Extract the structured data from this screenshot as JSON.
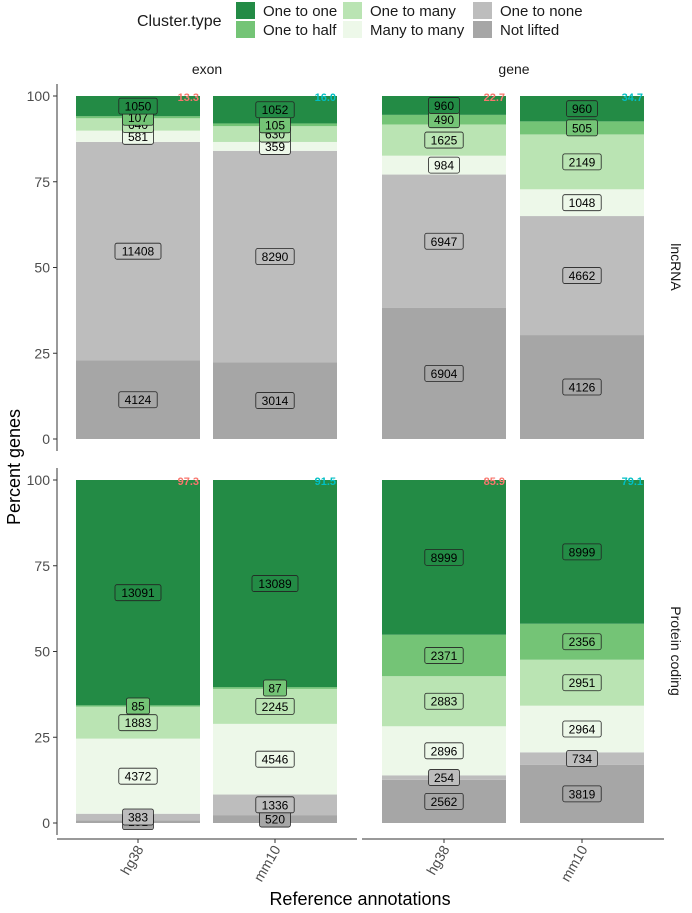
{
  "legend": {
    "title": "Cluster.type",
    "items": [
      {
        "name": "One to one",
        "color": "#238b45"
      },
      {
        "name": "One to half",
        "color": "#74c476"
      },
      {
        "name": "One to many",
        "color": "#bae4b3"
      },
      {
        "name": "Many to many",
        "color": "#edf8e9"
      },
      {
        "name": "One to none",
        "color": "#bdbdbd"
      },
      {
        "name": "Not lifted",
        "color": "#a6a6a6"
      }
    ]
  },
  "chart_data": {
    "type": "bar",
    "stacked": true,
    "ylabel": "Percent genes",
    "xlabel": "Reference annotations",
    "ylim": [
      0,
      100
    ],
    "yticks": [
      0,
      25,
      50,
      75,
      100
    ],
    "categories": [
      "hg38",
      "mm10"
    ],
    "col_facets": [
      "exon",
      "gene"
    ],
    "row_facets": [
      "lncRNA",
      "Protein coding"
    ],
    "category_colors": {
      "hg38": "#f8766d",
      "mm10": "#00bfc4"
    },
    "panels": [
      {
        "col": "exon",
        "row": "lncRNA",
        "bars": [
          {
            "category": "hg38",
            "total": "13.3",
            "segments": [
              {
                "type": "Not lifted",
                "count": 4124,
                "percent": 22.9
              },
              {
                "type": "One to none",
                "count": 11408,
                "percent": 63.7
              },
              {
                "type": "Many to many",
                "count": 581,
                "percent": 3.3
              },
              {
                "type": "One to many",
                "count": 640,
                "percent": 3.6
              },
              {
                "type": "One to half",
                "count": 107,
                "percent": 0.6
              },
              {
                "type": "One to one",
                "count": 1050,
                "percent": 5.9
              }
            ]
          },
          {
            "category": "mm10",
            "total": "16.0",
            "segments": [
              {
                "type": "Not lifted",
                "count": 3014,
                "percent": 22.4
              },
              {
                "type": "One to none",
                "count": 8290,
                "percent": 61.6
              },
              {
                "type": "Many to many",
                "count": 359,
                "percent": 2.6
              },
              {
                "type": "One to many",
                "count": 630,
                "percent": 4.6
              },
              {
                "type": "One to half",
                "count": 105,
                "percent": 0.8
              },
              {
                "type": "One to one",
                "count": 1052,
                "percent": 8.0
              }
            ]
          }
        ]
      },
      {
        "col": "gene",
        "row": "lncRNA",
        "bars": [
          {
            "category": "hg38",
            "total": "22.7",
            "segments": [
              {
                "type": "Not lifted",
                "count": 6904,
                "percent": 38.2
              },
              {
                "type": "One to none",
                "count": 6947,
                "percent": 38.9
              },
              {
                "type": "Many to many",
                "count": 984,
                "percent": 5.5
              },
              {
                "type": "One to many",
                "count": 1625,
                "percent": 9.1
              },
              {
                "type": "One to half",
                "count": 490,
                "percent": 2.8
              },
              {
                "type": "One to one",
                "count": 960,
                "percent": 5.5
              }
            ]
          },
          {
            "category": "mm10",
            "total": "34.7",
            "segments": [
              {
                "type": "Not lifted",
                "count": 4126,
                "percent": 30.3
              },
              {
                "type": "One to none",
                "count": 4662,
                "percent": 34.7
              },
              {
                "type": "Many to many",
                "count": 1048,
                "percent": 7.8
              },
              {
                "type": "One to many",
                "count": 2149,
                "percent": 16.0
              },
              {
                "type": "One to half",
                "count": 505,
                "percent": 3.8
              },
              {
                "type": "One to one",
                "count": 960,
                "percent": 7.4
              }
            ]
          }
        ]
      },
      {
        "col": "exon",
        "row": "Protein coding",
        "bars": [
          {
            "category": "hg38",
            "total": "97.3",
            "segments": [
              {
                "type": "Not lifted",
                "count": 151,
                "percent": 0.8
              },
              {
                "type": "One to none",
                "count": 383,
                "percent": 1.9
              },
              {
                "type": "Many to many",
                "count": 4372,
                "percent": 21.9
              },
              {
                "type": "One to many",
                "count": 1883,
                "percent": 9.3
              },
              {
                "type": "One to half",
                "count": 85,
                "percent": 0.4
              },
              {
                "type": "One to one",
                "count": 13091,
                "percent": 65.7
              }
            ]
          },
          {
            "category": "mm10",
            "total": "91.5",
            "segments": [
              {
                "type": "Not lifted",
                "count": 520,
                "percent": 2.3
              },
              {
                "type": "One to none",
                "count": 1336,
                "percent": 6.0
              },
              {
                "type": "Many to many",
                "count": 4546,
                "percent": 20.6
              },
              {
                "type": "One to many",
                "count": 2245,
                "percent": 10.2
              },
              {
                "type": "One to half",
                "count": 87,
                "percent": 0.5
              },
              {
                "type": "One to one",
                "count": 13089,
                "percent": 60.4
              }
            ]
          }
        ]
      },
      {
        "col": "gene",
        "row": "Protein coding",
        "bars": [
          {
            "category": "hg38",
            "total": "85.9",
            "segments": [
              {
                "type": "Not lifted",
                "count": 2562,
                "percent": 12.6
              },
              {
                "type": "One to none",
                "count": 254,
                "percent": 1.3
              },
              {
                "type": "Many to many",
                "count": 2896,
                "percent": 14.3
              },
              {
                "type": "One to many",
                "count": 2883,
                "percent": 14.6
              },
              {
                "type": "One to half",
                "count": 2371,
                "percent": 12.1
              },
              {
                "type": "One to one",
                "count": 8999,
                "percent": 45.1
              }
            ]
          },
          {
            "category": "mm10",
            "total": "79.1",
            "segments": [
              {
                "type": "Not lifted",
                "count": 3819,
                "percent": 17.0
              },
              {
                "type": "One to none",
                "count": 734,
                "percent": 3.6
              },
              {
                "type": "Many to many",
                "count": 2964,
                "percent": 13.6
              },
              {
                "type": "One to many",
                "count": 2951,
                "percent": 13.4
              },
              {
                "type": "One to half",
                "count": 2356,
                "percent": 10.5
              },
              {
                "type": "One to one",
                "count": 8999,
                "percent": 41.9
              }
            ]
          }
        ]
      }
    ]
  }
}
